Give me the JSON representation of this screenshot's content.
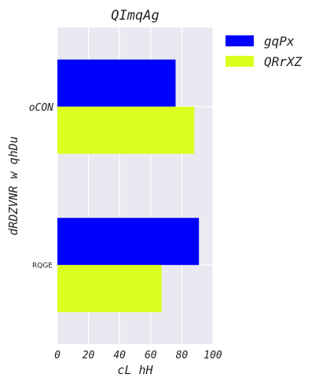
{
  "chart_data": {
    "type": "bar",
    "orientation": "horizontal",
    "title": "QImqAg",
    "xlabel": "cL hH",
    "ylabel": "dRDZVNR w qhDu",
    "categories": [
      "oCON",
      "RQGE"
    ],
    "series": [
      {
        "name": "gqPx",
        "color": "#0000ff",
        "values": [
          76,
          91
        ]
      },
      {
        "name": "QRrXZ",
        "color": "#dbff1f",
        "values": [
          88,
          67
        ]
      }
    ],
    "xlim": [
      0,
      100
    ],
    "xticks": [
      "0",
      "20",
      "40",
      "60",
      "80",
      "100"
    ],
    "grid": true,
    "legend_position": "outside-top-right",
    "background": "#e9e9f1"
  }
}
